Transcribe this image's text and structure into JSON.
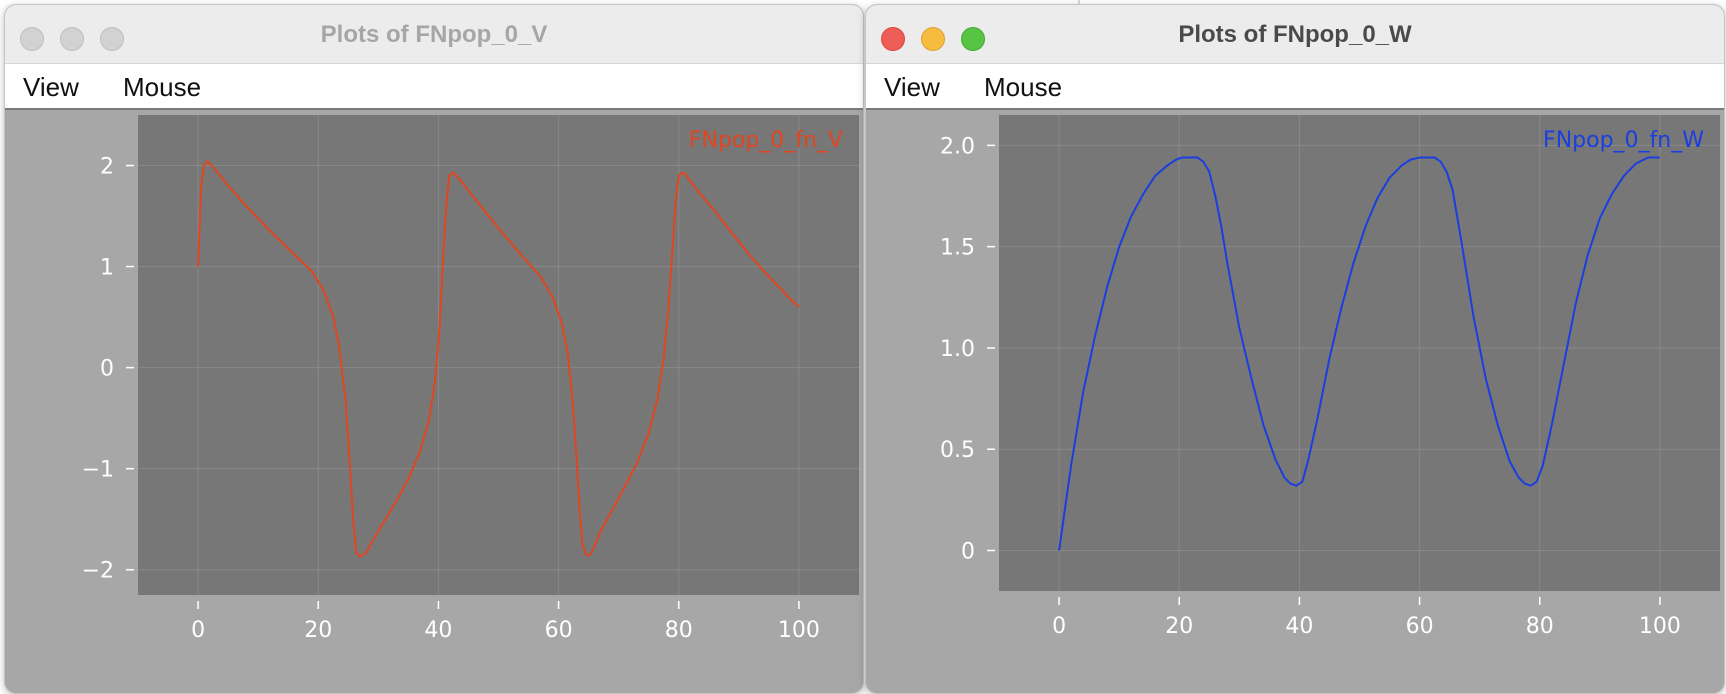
{
  "windows": [
    {
      "title": "Plots of FNpop_0_V",
      "active": false,
      "menu": [
        "View",
        "Mouse"
      ],
      "plot_bg": "#777777",
      "grid_color": "#888888"
    },
    {
      "title": "Plots of FNpop_0_W",
      "active": true,
      "menu": [
        "View",
        "Mouse"
      ],
      "plot_bg": "#777777",
      "grid_color": "#888888"
    }
  ],
  "chart_data": [
    {
      "type": "line",
      "title": "",
      "xlabel": "",
      "ylabel": "",
      "xlim": [
        -10,
        110
      ],
      "ylim": [
        -2.25,
        2.5
      ],
      "x_ticks": [
        0,
        20,
        40,
        60,
        80,
        100
      ],
      "x_tick_labels": [
        "0",
        "20",
        "40",
        "60",
        "80",
        "100"
      ],
      "y_ticks": [
        2,
        1,
        0,
        -1,
        -2
      ],
      "y_tick_labels": [
        "2",
        "1",
        "0",
        "−1",
        "−2"
      ],
      "grid": true,
      "legend_position": "top-right",
      "series": [
        {
          "name": "FNpop_0_fn_V",
          "color": "#e0461f",
          "x": [
            0,
            0.5,
            1,
            1.5,
            2,
            3,
            5,
            8,
            12,
            16,
            19,
            21,
            22.5,
            23.5,
            24.5,
            25.2,
            25.8,
            26.3,
            26.8,
            27.3,
            28,
            29,
            31,
            33,
            35,
            37,
            38.5,
            39.5,
            40.2,
            40.8,
            41.3,
            41.8,
            42.5,
            44,
            47,
            50,
            54,
            57,
            59,
            60.5,
            61.5,
            62.3,
            63,
            63.5,
            64,
            64.5,
            65,
            65.5,
            66,
            67,
            69,
            71,
            73,
            75,
            76.5,
            77.5,
            78.3,
            79,
            79.5,
            80,
            80.5,
            81,
            83,
            86,
            89,
            92,
            95,
            97,
            98.5,
            100
          ],
          "y": [
            1.0,
            1.8,
            2.0,
            2.04,
            2.02,
            1.95,
            1.8,
            1.6,
            1.35,
            1.12,
            0.95,
            0.75,
            0.5,
            0.2,
            -0.3,
            -0.9,
            -1.5,
            -1.82,
            -1.87,
            -1.86,
            -1.83,
            -1.72,
            -1.52,
            -1.32,
            -1.1,
            -0.82,
            -0.5,
            -0.1,
            0.4,
            1.1,
            1.6,
            1.9,
            1.93,
            1.83,
            1.6,
            1.38,
            1.1,
            0.9,
            0.7,
            0.45,
            0.15,
            -0.3,
            -0.9,
            -1.4,
            -1.75,
            -1.85,
            -1.86,
            -1.83,
            -1.76,
            -1.62,
            -1.4,
            -1.18,
            -0.95,
            -0.65,
            -0.3,
            0.1,
            0.6,
            1.2,
            1.65,
            1.9,
            1.93,
            1.92,
            1.76,
            1.55,
            1.32,
            1.1,
            0.9,
            0.78,
            0.68,
            0.6
          ]
        }
      ]
    },
    {
      "type": "line",
      "title": "",
      "xlabel": "",
      "ylabel": "",
      "xlim": [
        -10,
        110
      ],
      "ylim": [
        -0.2,
        2.15
      ],
      "x_ticks": [
        0,
        20,
        40,
        60,
        80,
        100
      ],
      "x_tick_labels": [
        "0",
        "20",
        "40",
        "60",
        "80",
        "100"
      ],
      "y_ticks": [
        2.0,
        1.5,
        1.0,
        0.5,
        0
      ],
      "y_tick_labels": [
        "2.0",
        "1.5",
        "1.0",
        "0.5",
        "0"
      ],
      "grid": true,
      "legend_position": "top-right",
      "series": [
        {
          "name": "FNpop_0_fn_W",
          "color": "#1a3ee0",
          "x": [
            0,
            2,
            4,
            6,
            8,
            10,
            12,
            14,
            16,
            18,
            19.5,
            20.5,
            22,
            23,
            24,
            25,
            26,
            27,
            28,
            30,
            32,
            34,
            36,
            37.5,
            38.5,
            39.5,
            40.5,
            41.5,
            43,
            45,
            47,
            49,
            51,
            53,
            55,
            57,
            58.5,
            60,
            61.5,
            62.5,
            63.5,
            64.5,
            65.5,
            67,
            69,
            71,
            73,
            75,
            76.5,
            77.5,
            78.5,
            79.5,
            80.5,
            82,
            84,
            86,
            88,
            90,
            92,
            94,
            96,
            98,
            100
          ],
          "y": [
            0.0,
            0.42,
            0.78,
            1.06,
            1.3,
            1.5,
            1.65,
            1.76,
            1.85,
            1.9,
            1.93,
            1.94,
            1.94,
            1.94,
            1.92,
            1.87,
            1.75,
            1.6,
            1.42,
            1.1,
            0.85,
            0.62,
            0.45,
            0.36,
            0.33,
            0.32,
            0.34,
            0.45,
            0.65,
            0.95,
            1.2,
            1.42,
            1.6,
            1.74,
            1.84,
            1.9,
            1.93,
            1.94,
            1.94,
            1.94,
            1.92,
            1.87,
            1.78,
            1.52,
            1.15,
            0.85,
            0.62,
            0.44,
            0.36,
            0.33,
            0.32,
            0.34,
            0.42,
            0.62,
            0.92,
            1.22,
            1.46,
            1.64,
            1.76,
            1.85,
            1.91,
            1.94,
            1.94
          ]
        }
      ]
    }
  ]
}
